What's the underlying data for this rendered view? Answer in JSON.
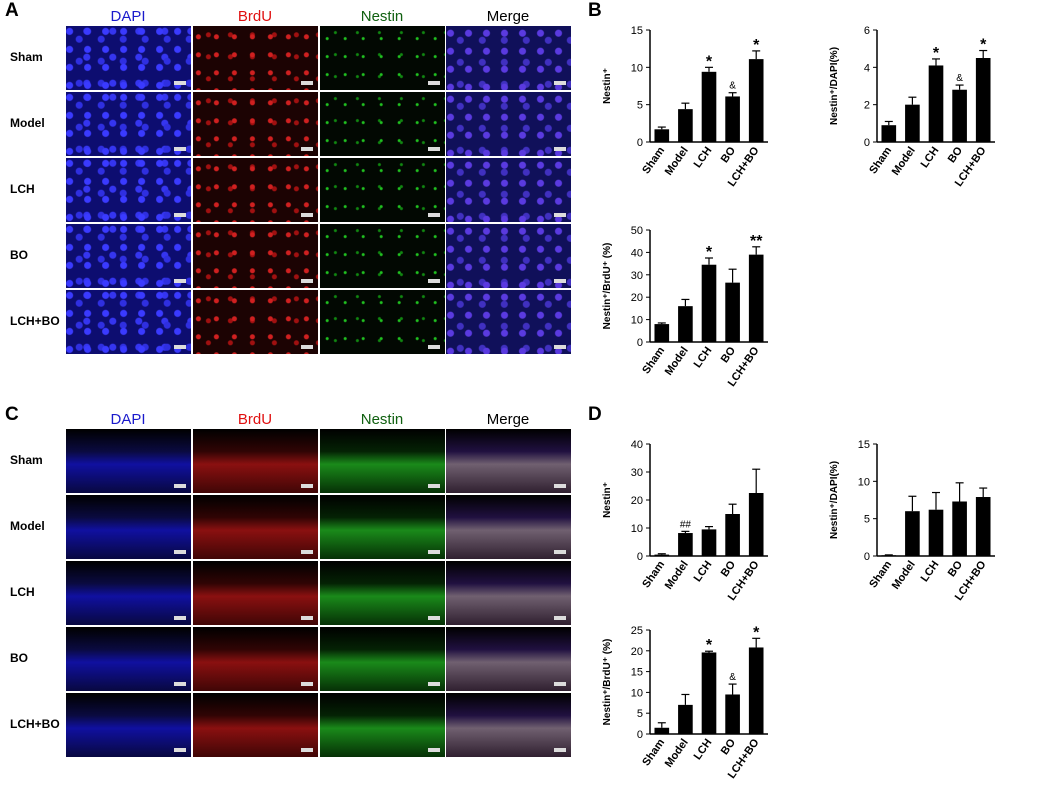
{
  "panel_labels": [
    "A",
    "B",
    "C",
    "D"
  ],
  "column_headers": [
    {
      "label": "DAPI",
      "color": "#1a1acc"
    },
    {
      "label": "BrdU",
      "color": "#e01010"
    },
    {
      "label": "Nestin",
      "color": "#106010"
    },
    {
      "label": "Merge",
      "color": "#000000"
    }
  ],
  "row_labels": [
    "Sham",
    "Model",
    "LCH",
    "BO",
    "LCH+BO"
  ],
  "chart_data": [
    {
      "type": "bar",
      "panel": "B",
      "categories": [
        "Sham",
        "Model",
        "LCH",
        "BO",
        "LCH+BO"
      ],
      "values": [
        1.7,
        4.4,
        9.4,
        6.1,
        11.1
      ],
      "errors": [
        0.3,
        0.8,
        0.6,
        0.5,
        1.1
      ],
      "annotations": [
        "",
        "",
        "*",
        "&",
        "*"
      ],
      "ylabel": "Nestin⁺",
      "ylim": [
        0,
        15
      ],
      "yticks": [
        0,
        5,
        10,
        15
      ]
    },
    {
      "type": "bar",
      "panel": "B",
      "categories": [
        "Sham",
        "Model",
        "LCH",
        "BO",
        "LCH+BO"
      ],
      "values": [
        0.9,
        2.0,
        4.1,
        2.8,
        4.5
      ],
      "errors": [
        0.2,
        0.4,
        0.35,
        0.25,
        0.4
      ],
      "annotations": [
        "",
        "",
        "*",
        "&",
        "*"
      ],
      "ylabel": "Nestin⁺/DAPI(%)",
      "ylim": [
        0,
        6
      ],
      "yticks": [
        0,
        2,
        4,
        6
      ]
    },
    {
      "type": "bar",
      "panel": "B",
      "categories": [
        "Sham",
        "Model",
        "LCH",
        "BO",
        "LCH+BO"
      ],
      "values": [
        8,
        16,
        34.5,
        26.5,
        39
      ],
      "errors": [
        0.5,
        3,
        3,
        6,
        3.5
      ],
      "annotations": [
        "",
        "",
        "*",
        "",
        "**"
      ],
      "ylabel": "Nestin⁺/BrdU⁺ (%)",
      "ylim": [
        0,
        50
      ],
      "yticks": [
        0,
        10,
        20,
        30,
        40,
        50
      ]
    },
    {
      "type": "bar",
      "panel": "D",
      "categories": [
        "Sham",
        "Model",
        "LCH",
        "BO",
        "LCH+BO"
      ],
      "values": [
        0.5,
        8.2,
        9.5,
        15,
        22.5
      ],
      "errors": [
        0.3,
        0.6,
        1.0,
        3.5,
        8.5
      ],
      "annotations": [
        "",
        "##",
        "",
        "",
        ""
      ],
      "ylabel": "Nestin⁺",
      "ylim": [
        0,
        40
      ],
      "yticks": [
        0,
        10,
        20,
        30,
        40
      ]
    },
    {
      "type": "bar",
      "panel": "D",
      "categories": [
        "Sham",
        "Model",
        "LCH",
        "BO",
        "LCH+BO"
      ],
      "values": [
        0.1,
        6.0,
        6.2,
        7.3,
        7.9
      ],
      "errors": [
        0.05,
        2.0,
        2.3,
        2.5,
        1.2
      ],
      "annotations": [
        "",
        "",
        "",
        "",
        ""
      ],
      "ylabel": "Nestin⁺/DAPI(%)",
      "ylim": [
        0,
        15
      ],
      "yticks": [
        0,
        5,
        10,
        15
      ]
    },
    {
      "type": "bar",
      "panel": "D",
      "categories": [
        "Sham",
        "Model",
        "LCH",
        "BO",
        "LCH+BO"
      ],
      "values": [
        1.5,
        7.0,
        19.6,
        9.5,
        20.8
      ],
      "errors": [
        1.2,
        2.5,
        0.3,
        2.5,
        2.2
      ],
      "annotations": [
        "",
        "",
        "*",
        "&",
        "*"
      ],
      "ylabel": "Nestin⁺/BrdU⁺ (%)",
      "ylim": [
        0,
        25
      ],
      "yticks": [
        0,
        5,
        10,
        15,
        20,
        25
      ]
    }
  ]
}
